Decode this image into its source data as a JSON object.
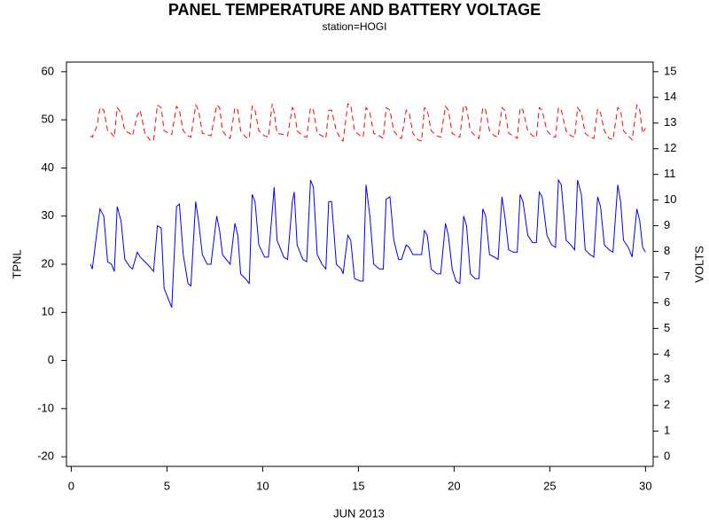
{
  "chart_data": {
    "type": "line",
    "title": "PANEL TEMPERATURE AND BATTERY VOLTAGE",
    "subtitle": "station=HOGI",
    "xlabel": "JUN 2013",
    "ylabel": "TPNL",
    "y2label": "VOLTS",
    "xlim": [
      -0.25,
      30.4
    ],
    "xticks": [
      0,
      5,
      10,
      15,
      20,
      25,
      30
    ],
    "ylim": [
      -22,
      62
    ],
    "yticks": [
      -20,
      -10,
      0,
      10,
      20,
      30,
      40,
      50,
      60
    ],
    "y2lim": [
      -0.375,
      15.375
    ],
    "y2ticks": [
      0,
      1,
      2,
      3,
      4,
      5,
      6,
      7,
      8,
      9,
      10,
      11,
      12,
      13,
      14,
      15
    ],
    "x": [
      1,
      1.1,
      1.35,
      1.5,
      1.7,
      1.9,
      2.1,
      2.25,
      2.4,
      2.6,
      2.8,
      3.05,
      3.2,
      3.45,
      3.6,
      3.85,
      4.1,
      4.3,
      4.5,
      4.7,
      4.85,
      5.1,
      5.25,
      5.5,
      5.65,
      5.85,
      6.1,
      6.25,
      6.5,
      6.65,
      6.85,
      7.1,
      7.3,
      7.6,
      7.75,
      7.9,
      8.1,
      8.3,
      8.55,
      8.7,
      8.85,
      9.1,
      9.3,
      9.45,
      9.6,
      9.8,
      10.1,
      10.3,
      10.5,
      10.6,
      10.75,
      11.1,
      11.3,
      11.55,
      11.65,
      11.8,
      12.1,
      12.3,
      12.5,
      12.65,
      12.85,
      13.1,
      13.3,
      13.45,
      13.6,
      13.85,
      14.1,
      14.2,
      14.45,
      14.6,
      14.8,
      15.1,
      15.25,
      15.4,
      15.6,
      15.8,
      16.1,
      16.3,
      16.45,
      16.65,
      16.85,
      17.1,
      17.25,
      17.5,
      17.65,
      17.85,
      18.1,
      18.3,
      18.45,
      18.6,
      18.8,
      19.1,
      19.3,
      19.55,
      19.7,
      19.9,
      20.1,
      20.3,
      20.5,
      20.65,
      20.85,
      21.1,
      21.3,
      21.5,
      21.65,
      21.85,
      22.1,
      22.3,
      22.5,
      22.65,
      22.85,
      23.1,
      23.3,
      23.45,
      23.6,
      23.85,
      24.1,
      24.3,
      24.45,
      24.6,
      24.85,
      25.1,
      25.3,
      25.45,
      25.6,
      25.85,
      26.1,
      26.3,
      26.45,
      26.65,
      26.85,
      27.1,
      27.3,
      27.5,
      27.65,
      27.85,
      28.1,
      28.3,
      28.55,
      28.7,
      28.85,
      29.1,
      29.3,
      29.55,
      29.7,
      29.85,
      30
    ],
    "series": [
      {
        "name": "TPNL",
        "color": "#0000ff",
        "dash": false,
        "axis": "y",
        "values": [
          20,
          19,
          27,
          31.5,
          30,
          20.5,
          20,
          18.5,
          32,
          29,
          21,
          19.5,
          19,
          22.5,
          21.5,
          20.5,
          19.5,
          18.5,
          28,
          27.5,
          15,
          12.5,
          11,
          32,
          32.5,
          22,
          16,
          15.5,
          33,
          29,
          22,
          20,
          20,
          30,
          27,
          22,
          21,
          20,
          28.5,
          26,
          18,
          17,
          16,
          34.5,
          33,
          24,
          21.5,
          21.5,
          31,
          36,
          25,
          21.5,
          21,
          33,
          35,
          24,
          21,
          20.5,
          37.5,
          36,
          22,
          20,
          19,
          33,
          33,
          20,
          19,
          18,
          26,
          25,
          17,
          16.5,
          16.5,
          36.5,
          30,
          20,
          19,
          19,
          33.5,
          34,
          25,
          21,
          21,
          24,
          23.5,
          22,
          22,
          22,
          27,
          26,
          19,
          18,
          18,
          28.5,
          26,
          19,
          16.5,
          16,
          30,
          28,
          18,
          17,
          17,
          31.5,
          30,
          22,
          21.5,
          21,
          34,
          30,
          23,
          22.5,
          22.5,
          34.5,
          33,
          26,
          24.5,
          24.5,
          35,
          34,
          26,
          24,
          23.5,
          37.5,
          36.5,
          25,
          24,
          23,
          37.5,
          34.5,
          23,
          22,
          21.5,
          34,
          32,
          24,
          23,
          22.5,
          36.5,
          33,
          25,
          23.5,
          21.5,
          31.5,
          29,
          23.5,
          22.5
        ]
      },
      {
        "name": "VOLTS",
        "color": "#ff0000",
        "dash": true,
        "axis": "y2",
        "values": [
          12.5,
          12.45,
          12.9,
          13.6,
          13.5,
          12.7,
          12.6,
          12.45,
          13.6,
          13.4,
          12.7,
          12.6,
          12.5,
          13.3,
          13.5,
          12.6,
          12.35,
          12.3,
          13.7,
          13.6,
          12.7,
          12.6,
          12.55,
          13.65,
          13.5,
          12.7,
          12.5,
          12.45,
          13.7,
          13.5,
          12.6,
          12.55,
          12.5,
          13.7,
          13.6,
          12.7,
          12.5,
          12.4,
          13.6,
          13.5,
          12.7,
          12.45,
          12.4,
          13.65,
          13.5,
          12.7,
          12.5,
          12.45,
          13.75,
          13.4,
          12.6,
          12.55,
          12.5,
          13.6,
          13.5,
          12.7,
          12.5,
          12.45,
          13.6,
          13.5,
          12.6,
          12.5,
          12.4,
          13.5,
          13.5,
          12.7,
          12.35,
          12.3,
          13.75,
          13.7,
          12.7,
          12.5,
          12.45,
          13.6,
          13.4,
          12.6,
          12.5,
          12.4,
          13.6,
          13.5,
          12.7,
          12.45,
          12.4,
          13.5,
          13.4,
          12.6,
          12.35,
          12.3,
          13.6,
          13.5,
          12.7,
          12.5,
          12.45,
          13.65,
          13.5,
          12.6,
          12.5,
          12.45,
          13.7,
          13.6,
          12.7,
          12.5,
          12.4,
          13.6,
          13.5,
          12.7,
          12.5,
          12.45,
          13.6,
          13.5,
          12.6,
          12.5,
          12.4,
          13.6,
          13.5,
          12.7,
          12.5,
          12.45,
          13.6,
          13.5,
          12.7,
          12.5,
          12.45,
          13.6,
          13.5,
          12.7,
          12.5,
          12.45,
          13.6,
          13.4,
          12.6,
          12.45,
          12.4,
          13.55,
          13.4,
          12.7,
          12.4,
          12.35,
          13.6,
          13.5,
          12.7,
          12.5,
          12.35,
          13.7,
          13.5,
          12.6,
          12.8
        ]
      }
    ]
  }
}
